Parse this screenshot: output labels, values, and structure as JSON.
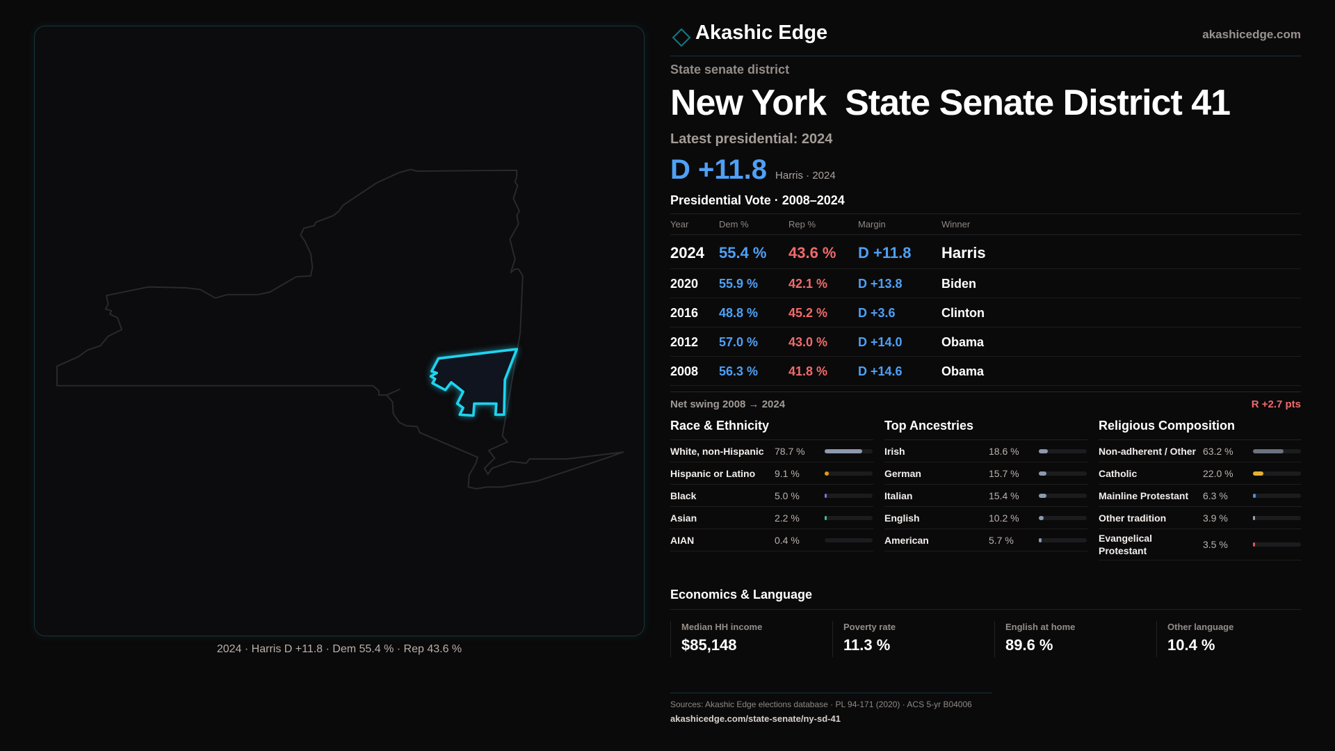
{
  "brand": {
    "name": "Akashic Edge",
    "site": "akashicedge.com",
    "accent": "#1fd3ee"
  },
  "map": {
    "caption": "2024 · Harris D +11.8 · Dem 55.4 % · Rep 43.6 %",
    "highlight_color": "#1fd3ee"
  },
  "header": {
    "kicker": "State senate district",
    "title": "New York  State Senate District 41",
    "latest_label": "Latest presidential: 2024",
    "margin": "D +11.8",
    "margin_sub": "Harris · 2024"
  },
  "vote": {
    "heading": "Presidential Vote · 2008–2024",
    "columns": [
      "Year",
      "Dem %",
      "Rep %",
      "Margin",
      "Winner"
    ],
    "rows": [
      {
        "year": "2024",
        "dem": "55.4 %",
        "rep": "43.6 %",
        "margin": "D +11.8",
        "winner": "Harris"
      },
      {
        "year": "2020",
        "dem": "55.9 %",
        "rep": "42.1 %",
        "margin": "D +13.8",
        "winner": "Biden"
      },
      {
        "year": "2016",
        "dem": "48.8 %",
        "rep": "45.2 %",
        "margin": "D +3.6",
        "winner": "Clinton"
      },
      {
        "year": "2012",
        "dem": "57.0 %",
        "rep": "43.0 %",
        "margin": "D +14.0",
        "winner": "Obama"
      },
      {
        "year": "2008",
        "dem": "56.3 %",
        "rep": "41.8 %",
        "margin": "D +14.6",
        "winner": "Obama"
      }
    ],
    "swing_label": "Net swing 2008 → 2024",
    "swing_value": "R +2.7 pts"
  },
  "sections": [
    {
      "title": "Race & Ethnicity",
      "items": [
        {
          "label": "White, non-Hispanic",
          "value": "78.7 %",
          "pct": 78.7,
          "color": "#8d99ad"
        },
        {
          "label": "Hispanic or Latino",
          "value": "9.1 %",
          "pct": 9.1,
          "color": "#e39a12"
        },
        {
          "label": "Black",
          "value": "5.0 %",
          "pct": 5.0,
          "color": "#8a6ee0"
        },
        {
          "label": "Asian",
          "value": "2.2 %",
          "pct": 2.2,
          "color": "#3dbf8f"
        },
        {
          "label": "AIAN",
          "value": "0.4 %",
          "pct": 0.4,
          "color": "#555"
        }
      ]
    },
    {
      "title": "Top Ancestries",
      "items": [
        {
          "label": "Irish",
          "value": "18.6 %",
          "pct": 18.6,
          "color": "#8d99ad"
        },
        {
          "label": "German",
          "value": "15.7 %",
          "pct": 15.7,
          "color": "#8d99ad"
        },
        {
          "label": "Italian",
          "value": "15.4 %",
          "pct": 15.4,
          "color": "#8d99ad"
        },
        {
          "label": "English",
          "value": "10.2 %",
          "pct": 10.2,
          "color": "#8d99ad"
        },
        {
          "label": "American",
          "value": "5.7 %",
          "pct": 5.7,
          "color": "#8d99ad"
        }
      ]
    },
    {
      "title": "Religious Composition",
      "items": [
        {
          "label": "Non-adherent / Other",
          "value": "63.2 %",
          "pct": 63.2,
          "color": "#6b7280"
        },
        {
          "label": "Catholic",
          "value": "22.0 %",
          "pct": 22.0,
          "color": "#e3b22f"
        },
        {
          "label": "Mainline Protestant",
          "value": "6.3 %",
          "pct": 6.3,
          "color": "#4a8fe0"
        },
        {
          "label": "Other tradition",
          "value": "3.9 %",
          "pct": 3.9,
          "color": "#9ca3af"
        },
        {
          "label": "Evangelical Protestant",
          "value": "3.5 %",
          "pct": 3.5,
          "color": "#e05555"
        }
      ]
    }
  ],
  "economics": {
    "heading": "Economics & Language",
    "cards": [
      {
        "label": "Median HH income",
        "value": "$85,148"
      },
      {
        "label": "Poverty rate",
        "value": "11.3 %"
      },
      {
        "label": "English at home",
        "value": "89.6 %"
      },
      {
        "label": "Other language",
        "value": "10.4 %"
      }
    ]
  },
  "footer": {
    "sources": "Sources: Akashic Edge elections database · PL 94-171 (2020) · ACS 5-yr B04006",
    "url": "akashicedge.com/state-senate/ny-sd-41"
  }
}
